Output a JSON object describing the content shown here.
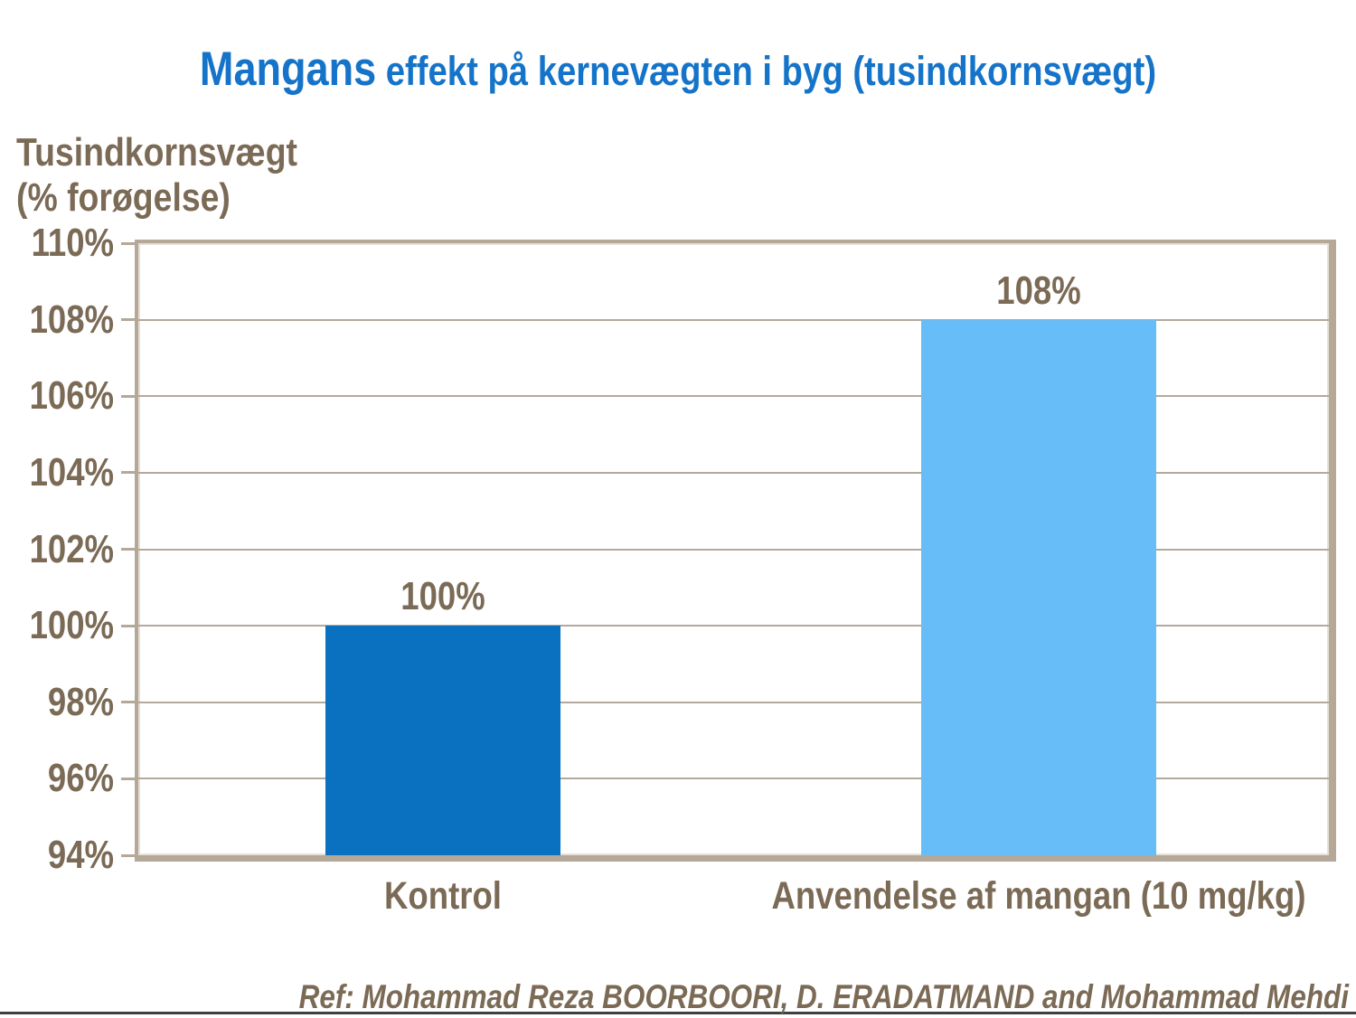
{
  "slide": {
    "title_prefix": "Mangans",
    "title_rest": " effekt på kernevægten i byg (tusindkornsvægt)",
    "footer_ref": "Ref: Mohammad Reza BOORBOORI, D. ERADATMAND and Mohammad Mehdi"
  },
  "chart_data": {
    "type": "bar",
    "title": "Mangans effekt på kernevægten i byg (tusindkornsvægt)",
    "ylabel": "Tusindkornsvægt (% forøgelse)",
    "ylabel_lines": [
      "Tusindkornsvægt",
      "(% forøgelse)"
    ],
    "categories": [
      "Kontrol",
      "Anvendelse af mangan (10 mg/kg)"
    ],
    "values": [
      100,
      108
    ],
    "value_labels": [
      "100%",
      "108%"
    ],
    "bar_colors": [
      "#0a71c1",
      "#66bdf8"
    ],
    "ylim": [
      94,
      110
    ],
    "ytick_step": 2,
    "ytick_labels_top_to_bottom": [
      "110%",
      "108%",
      "106%",
      "104%",
      "102%",
      "100%",
      "98%",
      "96%",
      "94%"
    ],
    "grid": true,
    "legend": false,
    "xlabel": ""
  },
  "colors": {
    "title_blue": "#1574c9",
    "text_brown": "#7b6a55",
    "frame_taupe": "#b5a898",
    "gridline": "#b3a99c",
    "bar_dark_blue": "#0a71c1",
    "bar_light_blue": "#66bdf8",
    "bottom_rule": "#404040",
    "background": "#ffffff"
  }
}
